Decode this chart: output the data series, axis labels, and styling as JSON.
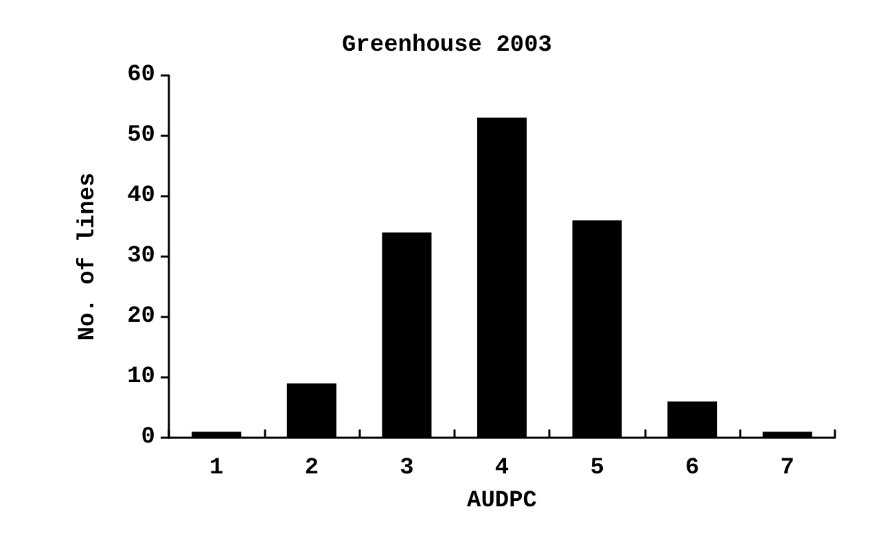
{
  "chart_data": {
    "type": "bar",
    "title": "Greenhouse 2003",
    "xlabel": "AUDPC",
    "ylabel": "No. of lines",
    "categories": [
      "1",
      "2",
      "3",
      "4",
      "5",
      "6",
      "7"
    ],
    "values": [
      1,
      9,
      34,
      53,
      36,
      6,
      1
    ],
    "color": "#000000",
    "ylim": [
      0,
      60
    ],
    "yticks": [
      0,
      10,
      20,
      30,
      40,
      50,
      60
    ],
    "grid": false
  }
}
